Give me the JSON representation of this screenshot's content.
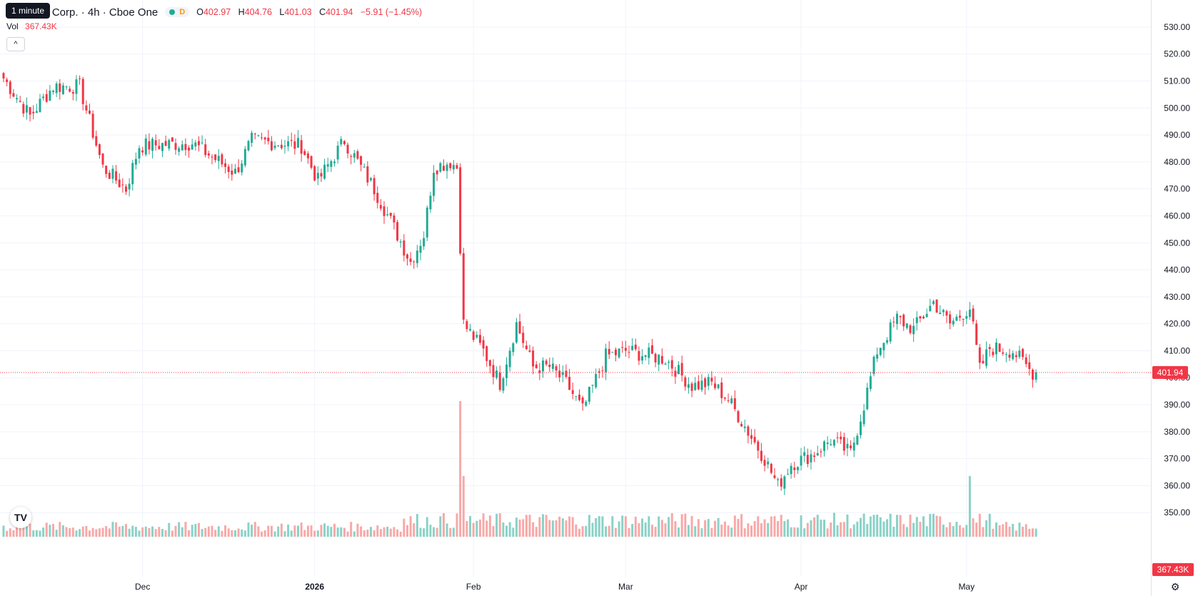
{
  "legend": {
    "title": "oft Corp. · 4h · Cboe One",
    "status_badge": "D",
    "open_label": "O",
    "open_value": "402.97",
    "high_label": "H",
    "high_value": "404.76",
    "low_label": "L",
    "low_value": "401.03",
    "close_label": "C",
    "close_value": "401.94",
    "change": "−5.91 (−1.45%)"
  },
  "tooltip": "1 minute",
  "volume": {
    "label": "Vol",
    "value": "367.43K"
  },
  "price_badge": "401.94",
  "volume_badge": "367.43K",
  "logo_text": "TV",
  "colors": {
    "up": "#22ab94",
    "down": "#f23645",
    "up_vol": "#8ad2c7",
    "down_vol": "#f7a9a8"
  },
  "chart_data": {
    "type": "candlestick",
    "title": "oft Corp. · 4h · Cboe One",
    "ylim": [
      340,
      535
    ],
    "y_ticks": [
      350,
      360,
      370,
      380,
      390,
      400,
      410,
      420,
      430,
      440,
      450,
      460,
      470,
      480,
      490,
      500,
      510,
      520,
      530
    ],
    "y_tick_labels": [
      "350.00",
      "360.00",
      "370.00",
      "380.00",
      "390.00",
      "400.00",
      "410.00",
      "420.00",
      "430.00",
      "440.00",
      "450.00",
      "460.00",
      "470.00",
      "480.00",
      "490.00",
      "500.00",
      "510.00",
      "520.00",
      "530.00"
    ],
    "x_labels": [
      {
        "label": "Dec",
        "index": 42
      },
      {
        "label": "2026",
        "index": 94,
        "bold": true
      },
      {
        "label": "Feb",
        "index": 142
      },
      {
        "label": "Mar",
        "index": 188
      },
      {
        "label": "Apr",
        "index": 241
      },
      {
        "label": "May",
        "index": 291
      }
    ],
    "last_price": 401.94,
    "series": [
      {
        "name": "Price",
        "waypoints": [
          [
            0,
            511
          ],
          [
            8,
            497
          ],
          [
            15,
            508
          ],
          [
            23,
            508
          ],
          [
            30,
            478
          ],
          [
            37,
            470
          ],
          [
            41,
            486
          ],
          [
            57,
            487
          ],
          [
            70,
            476
          ],
          [
            75,
            488
          ],
          [
            90,
            486
          ],
          [
            95,
            473
          ],
          [
            103,
            488
          ],
          [
            112,
            470
          ],
          [
            117,
            458
          ],
          [
            123,
            443
          ],
          [
            127,
            453
          ],
          [
            130,
            478
          ],
          [
            135,
            480
          ],
          [
            137,
            478
          ],
          [
            139,
            420
          ],
          [
            145,
            410
          ],
          [
            150,
            398
          ],
          [
            155,
            420
          ],
          [
            160,
            404
          ],
          [
            165,
            404
          ],
          [
            170,
            398
          ],
          [
            175,
            388
          ],
          [
            182,
            408
          ],
          [
            188,
            410
          ],
          [
            200,
            407
          ],
          [
            208,
            397
          ],
          [
            214,
            398
          ],
          [
            219,
            392
          ],
          [
            225,
            380
          ],
          [
            230,
            370
          ],
          [
            234,
            360
          ],
          [
            238,
            368
          ],
          [
            245,
            372
          ],
          [
            250,
            377
          ],
          [
            256,
            372
          ],
          [
            260,
            390
          ],
          [
            264,
            410
          ],
          [
            270,
            422
          ],
          [
            275,
            418
          ],
          [
            281,
            428
          ],
          [
            286,
            420
          ],
          [
            292,
            426
          ],
          [
            295,
            403
          ],
          [
            298,
            411
          ],
          [
            305,
            410
          ],
          [
            310,
            403
          ],
          [
            312,
            401
          ]
        ]
      }
    ],
    "volume": {
      "name": "Vol",
      "ylim": [
        0,
        380
      ],
      "baseline": 40,
      "spikes": [
        [
          138,
          380
        ],
        [
          139,
          170
        ],
        [
          292,
          170
        ]
      ]
    }
  }
}
